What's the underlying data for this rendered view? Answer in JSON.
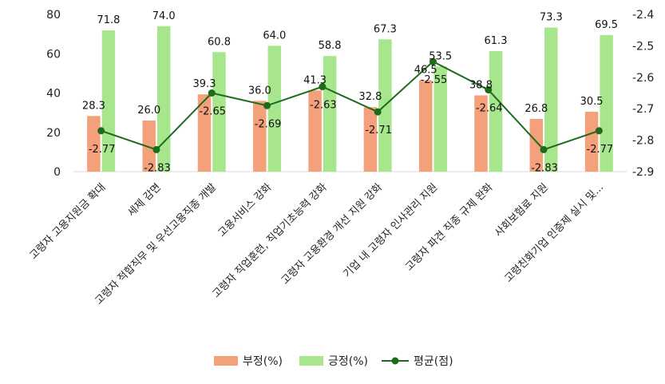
{
  "chart_data": {
    "type": "bar",
    "categories": [
      "고령자 고용지원금 확대",
      "세제 감면",
      "고령자 적합직무 및 우선고용직종 개발",
      "고용서비스 강화",
      "고령자 직업훈련, 직업기초능력 강화",
      "고령자 고용환경 개선 지원 강화",
      "기업 내 고령자 인사관리 지원",
      "고령자 파견 직종 규제 완화",
      "사회보험료 지원",
      "고령친화기업 인증제 실시 및..."
    ],
    "series": [
      {
        "name": "부정(%)",
        "type": "bar",
        "axis": "left",
        "color": "#f4a07a",
        "values": [
          28.3,
          26.0,
          39.3,
          36.0,
          41.3,
          32.8,
          46.5,
          38.8,
          26.8,
          30.5
        ],
        "labels": [
          "28.3",
          "26.0",
          "39.3",
          "36.0",
          "41.3",
          "32.8",
          "46.5",
          "38.8",
          "26.8",
          "30.5"
        ]
      },
      {
        "name": "긍정(%)",
        "type": "bar",
        "axis": "left",
        "color": "#a8e68e",
        "values": [
          71.8,
          74.0,
          60.8,
          64.0,
          58.8,
          67.3,
          53.5,
          61.3,
          73.3,
          69.5
        ],
        "labels": [
          "71.8",
          "74.0",
          "60.8",
          "64.0",
          "58.8",
          "67.3",
          "53.5",
          "61.3",
          "73.3",
          "69.5"
        ]
      },
      {
        "name": "평균(점)",
        "type": "line",
        "axis": "right",
        "color": "#1e6b1e",
        "values": [
          -2.77,
          -2.83,
          -2.65,
          -2.69,
          -2.63,
          -2.71,
          -2.55,
          -2.64,
          -2.83,
          -2.77
        ],
        "labels": [
          "-2.77",
          "-2.83",
          "-2.65",
          "-2.69",
          "-2.63",
          "-2.71",
          "-2.55",
          "-2.64",
          "-2.83",
          "-2.77"
        ]
      }
    ],
    "left_axis": {
      "range": [
        0,
        80
      ],
      "ticks": [
        "0",
        "20",
        "40",
        "60",
        "80"
      ]
    },
    "right_axis": {
      "range": [
        -2.9,
        -2.4
      ],
      "ticks": [
        "-2.4",
        "-2.5",
        "-2.6",
        "-2.7",
        "-2.8",
        "-2.9"
      ]
    },
    "grid": false,
    "legend_position": "bottom",
    "title": "",
    "xlabel": "",
    "ylabel": ""
  }
}
